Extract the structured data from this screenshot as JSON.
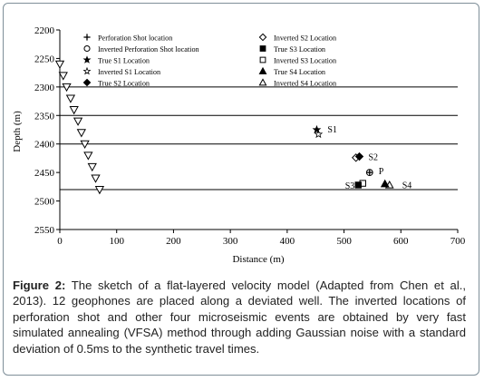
{
  "chart_data": {
    "type": "scatter",
    "xlabel": "Distance (m)",
    "ylabel": "Depth (m)",
    "xlim": [
      0,
      700
    ],
    "ylim": [
      2200,
      2550
    ],
    "y_inverted": true,
    "xticks": [
      0,
      100,
      200,
      300,
      400,
      500,
      600,
      700
    ],
    "yticks": [
      2200,
      2250,
      2300,
      2350,
      2400,
      2450,
      2500,
      2550
    ],
    "layer_boundaries": [
      2300,
      2350,
      2400,
      2480
    ],
    "legend": [
      {
        "label": "Perforation Shot location",
        "marker": "plus"
      },
      {
        "label": "Inverted Perforation Shot location",
        "marker": "circle-open"
      },
      {
        "label": "True S1 Location",
        "marker": "star-filled"
      },
      {
        "label": "Inverted S1 Location",
        "marker": "star-open"
      },
      {
        "label": "True S2 Location",
        "marker": "diamond-filled"
      },
      {
        "label": "Inverted S2 Location",
        "marker": "diamond-open"
      },
      {
        "label": "True S3 Location",
        "marker": "square-filled"
      },
      {
        "label": "Inverted S3 Location",
        "marker": "square-open"
      },
      {
        "label": "True S4 Location",
        "marker": "triangle-filled"
      },
      {
        "label": "Inverted S4 Location",
        "marker": "triangle-open"
      }
    ],
    "geophones": {
      "marker": "triangle-down-open",
      "x": [
        0,
        6,
        12,
        19,
        25,
        32,
        38,
        44,
        50,
        57,
        63,
        70
      ],
      "y": [
        2260,
        2280,
        2300,
        2320,
        2340,
        2360,
        2380,
        2400,
        2420,
        2440,
        2460,
        2480
      ]
    },
    "events": [
      {
        "label": "S1",
        "true": [
          452,
          2375
        ],
        "inverted": [
          455,
          2383
        ]
      },
      {
        "label": "S2",
        "true": [
          527,
          2422
        ],
        "inverted": [
          521,
          2424
        ]
      },
      {
        "label": "P",
        "true": [
          545,
          2450
        ],
        "inverted": [
          545,
          2450
        ]
      },
      {
        "label": "S3",
        "true": [
          525,
          2472
        ],
        "inverted": [
          533,
          2469
        ]
      },
      {
        "label": "S4",
        "true": [
          572,
          2470
        ],
        "inverted": [
          580,
          2472
        ]
      }
    ]
  },
  "caption": {
    "label": "Figure 2:",
    "text": " The sketch of a flat-layered velocity model (Adapted from Chen et al., 2013). 12 geophones are placed along a deviated well. The inverted locations of perforation shot and other four microseismic events are obtained by very fast simulated annealing (VFSA) method through adding Gaussian noise with a standard deviation of 0.5ms to the synthetic travel times."
  },
  "colors": {
    "ink": "#000000",
    "frame": "#7f8f99",
    "caption": "#222222"
  }
}
